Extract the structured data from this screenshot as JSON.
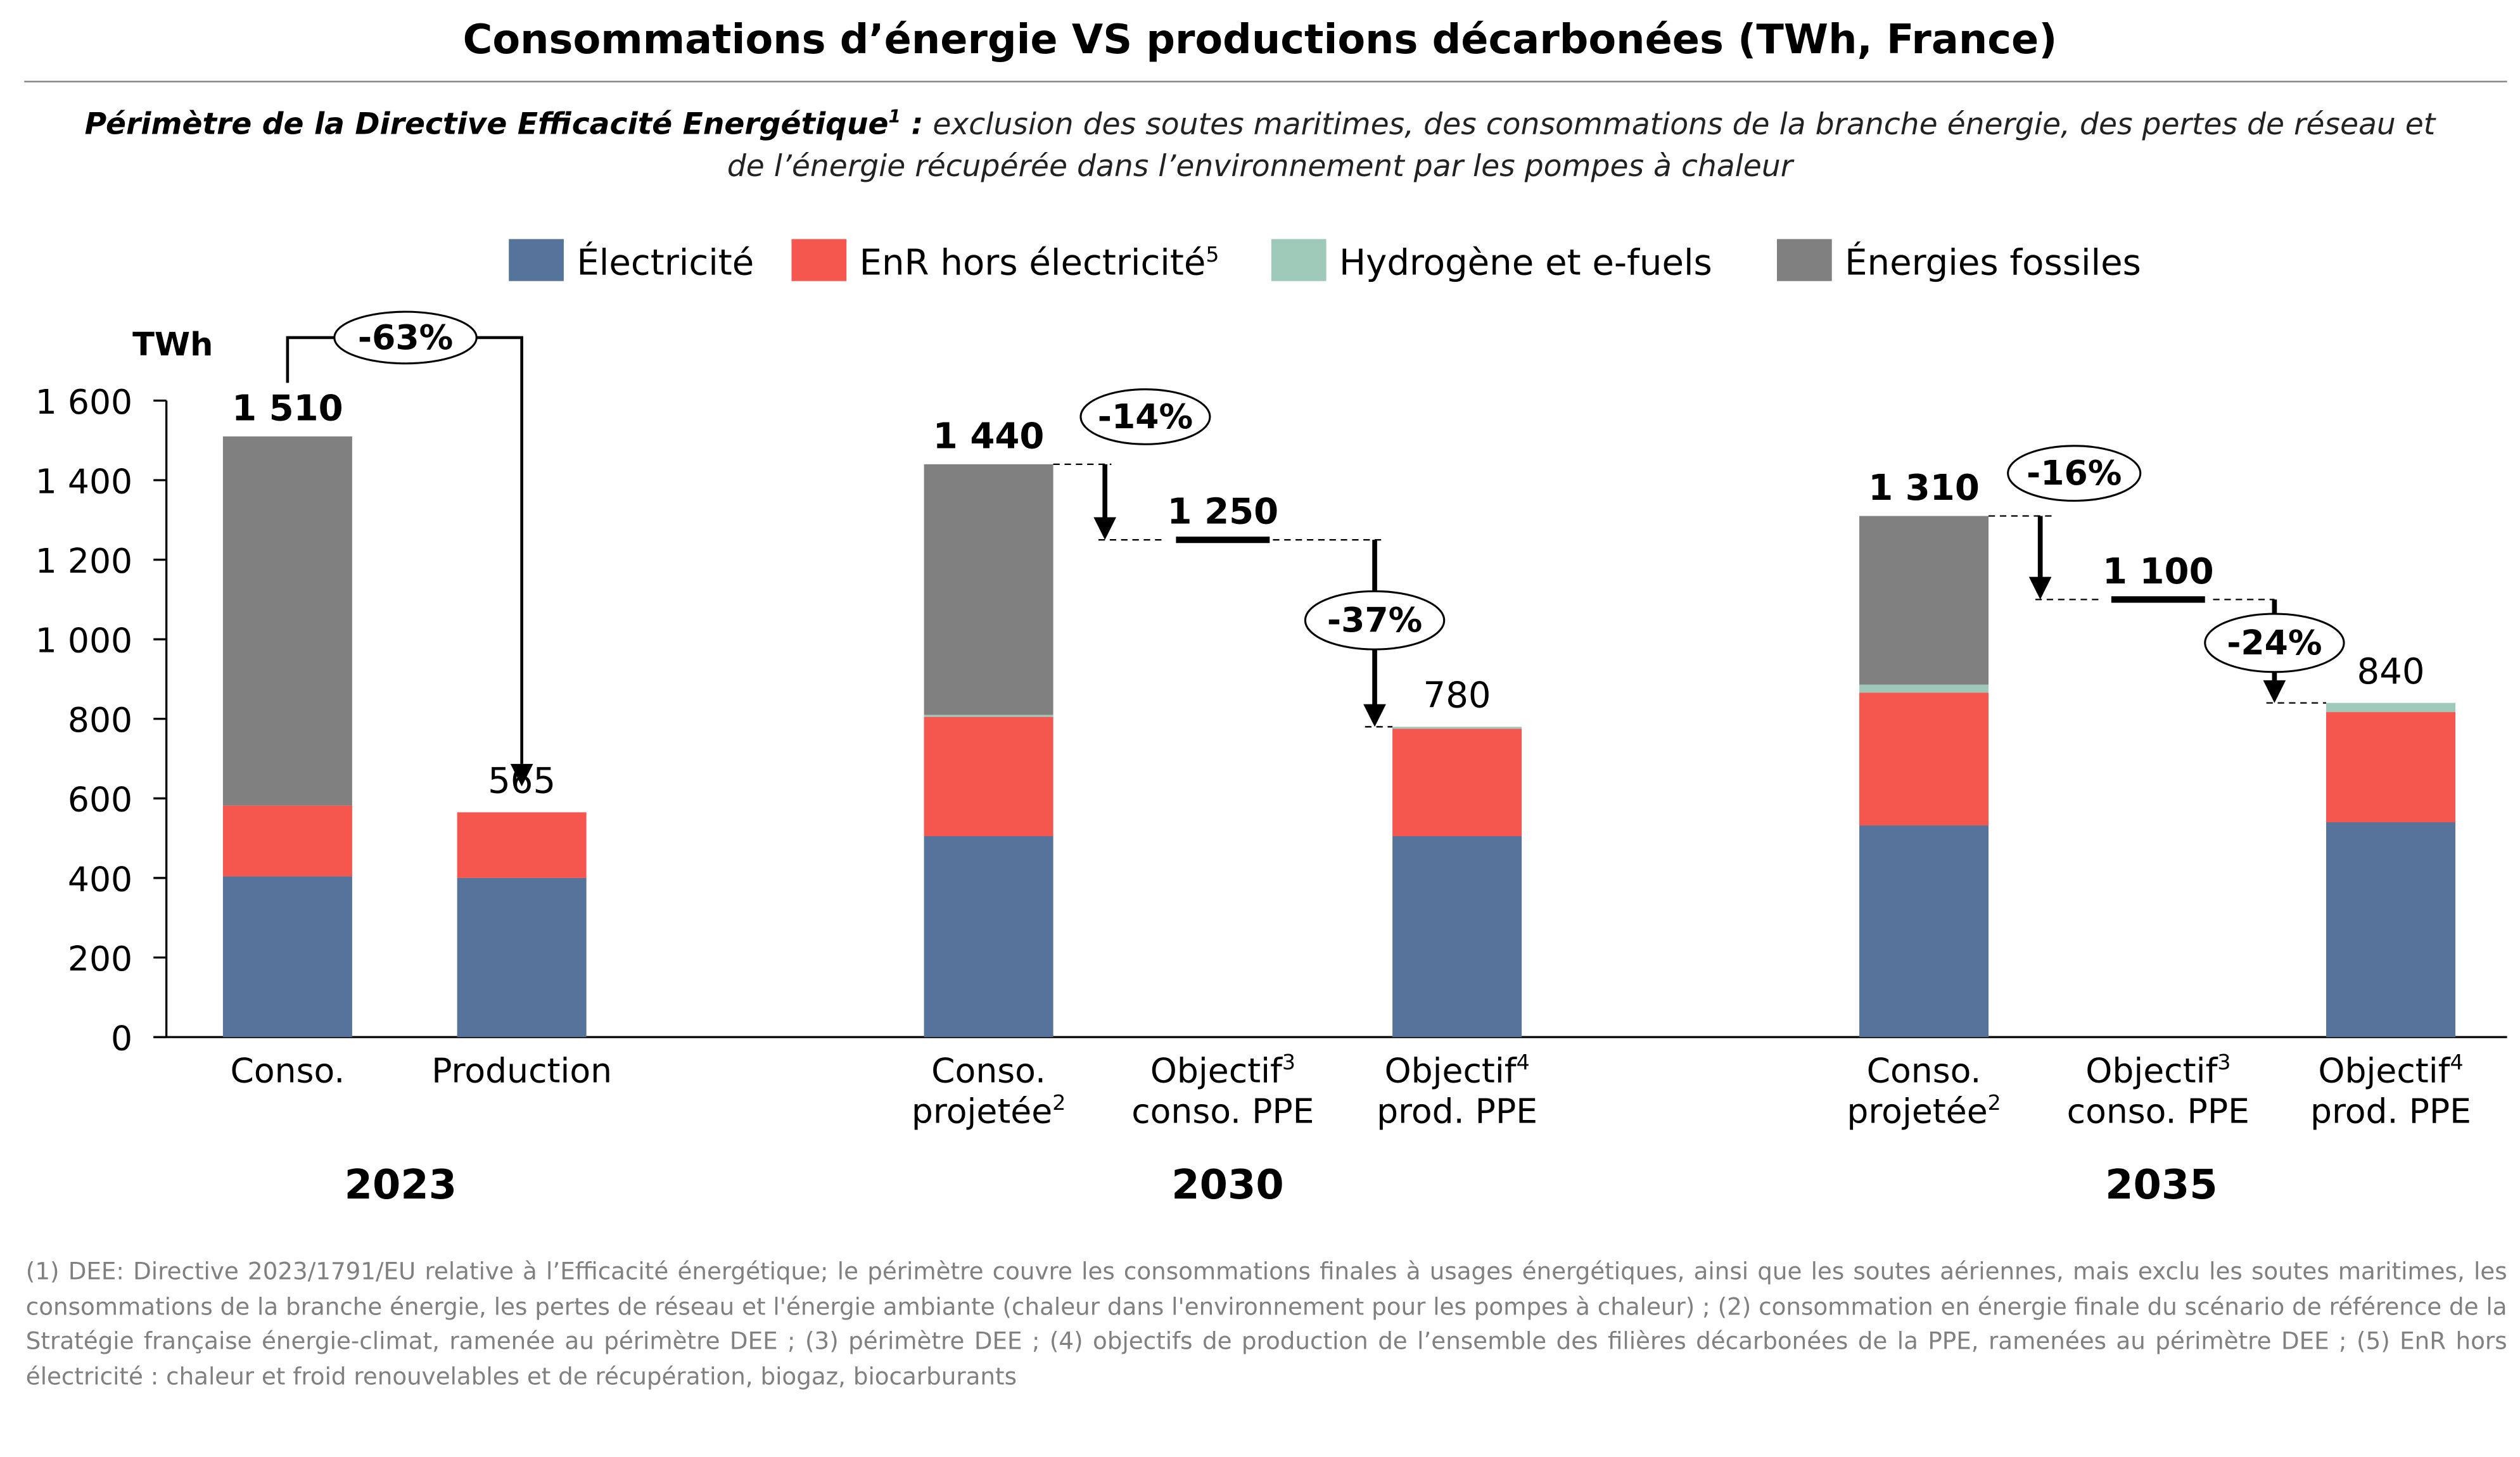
{
  "title": "Consommations d’énergie VS productions décarbonées (TWh, France)",
  "subtitle": {
    "bold": "Périmètre de la Directive Efficacité Energétique",
    "bold_sup": "1",
    "bold_suffix": " :",
    "text": " exclusion des soutes maritimes, des consommations de la branche énergie, des pertes de réseau et de l’énergie récupérée dans l’environnement par les pompes à chaleur"
  },
  "footnotes": "(1) DEE: Directive 2023/1791/EU relative à l’Efficacité énergétique; le périmètre couvre les consommations finales à usages énergétiques, ainsi que les soutes aériennes, mais exclu les soutes maritimes, les consommations de la branche énergie, les pertes de réseau et l'énergie ambiante (chaleur dans l'environnement pour les pompes à chaleur) ; (2) consommation en énergie finale du scénario de référence de la Stratégie française énergie-climat, ramenée au périmètre DEE ; (3) périmètre DEE ; (4) objectifs de production de l’ensemble des filières décarbonées de la PPE, ramenées au périmètre DEE ; (5) EnR hors électricité : chaleur et froid renouvelables et de récupération, biogaz, biocarburants",
  "chart_data": {
    "type": "bar",
    "stacked": true,
    "ylabel": "TWh",
    "ylim": [
      0,
      1600
    ],
    "yticks": [
      "0",
      "200",
      "400",
      "600",
      "800",
      "1 000",
      "1 200",
      "1 400",
      "1 600"
    ],
    "legend_position": "top",
    "grid": false,
    "legend": [
      {
        "name": "Électricité",
        "sup": "",
        "color": "#55739b"
      },
      {
        "name": "EnR hors électricité",
        "sup": "5",
        "color": "#f5564e"
      },
      {
        "name": "Hydrogène et e-fuels",
        "sup": "",
        "color": "#9ec9b8"
      },
      {
        "name": "Énergies fossiles",
        "sup": "",
        "color": "#808080"
      }
    ],
    "groups": [
      {
        "year": "2023",
        "categories": [
          {
            "line1": "Conso.",
            "sup1": "",
            "line2": "",
            "sup2": "",
            "values": [
              404,
              178,
              0,
              928
            ],
            "total": "1 510",
            "total_bold": true
          },
          {
            "line1": "Production",
            "sup1": "",
            "line2": "",
            "sup2": "",
            "values": [
              400,
              165,
              0,
              0
            ],
            "total": "565",
            "total_bold": false
          }
        ]
      },
      {
        "year": "2030",
        "categories": [
          {
            "line1": "Conso.",
            "sup1": "",
            "line2": "projetée",
            "sup2": "2",
            "values": [
              505,
              300,
              5,
              630
            ],
            "total": "1 440",
            "total_bold": true
          },
          {
            "line1": "Objectif",
            "sup1": "3",
            "line2": "conso. PPE",
            "sup2": "",
            "target": 1250,
            "total": "1 250",
            "total_bold": true
          },
          {
            "line1": "Objectif",
            "sup1": "4",
            "line2": "prod. PPE",
            "sup2": "",
            "values": [
              505,
              270,
              5,
              0
            ],
            "total": "780",
            "total_bold": false
          }
        ]
      },
      {
        "year": "2035",
        "categories": [
          {
            "line1": "Conso.",
            "sup1": "",
            "line2": "projetée",
            "sup2": "2",
            "values": [
              532,
              334,
              20,
              424
            ],
            "total": "1 310",
            "total_bold": true
          },
          {
            "line1": "Objectif",
            "sup1": "3",
            "line2": "conso. PPE",
            "sup2": "",
            "target": 1100,
            "total": "1 100",
            "total_bold": true
          },
          {
            "line1": "Objectif",
            "sup1": "4",
            "line2": "prod. PPE",
            "sup2": "",
            "values": [
              540,
              277,
              23,
              0
            ],
            "total": "840",
            "total_bold": false
          }
        ]
      }
    ],
    "annotations": [
      {
        "label": "-63%",
        "from": "2023 Conso.",
        "to": "2023 Production"
      },
      {
        "label": "-14%",
        "from": "2030 Conso. projetée",
        "to": "2030 Objectif conso. PPE"
      },
      {
        "label": "-37%",
        "from": "2030 Objectif conso. PPE",
        "to": "2030 Objectif prod. PPE"
      },
      {
        "label": "-16%",
        "from": "2035 Conso. projetée",
        "to": "2035 Objectif conso. PPE"
      },
      {
        "label": "-24%",
        "from": "2035 Objectif conso. PPE",
        "to": "2035 Objectif prod. PPE"
      }
    ]
  }
}
